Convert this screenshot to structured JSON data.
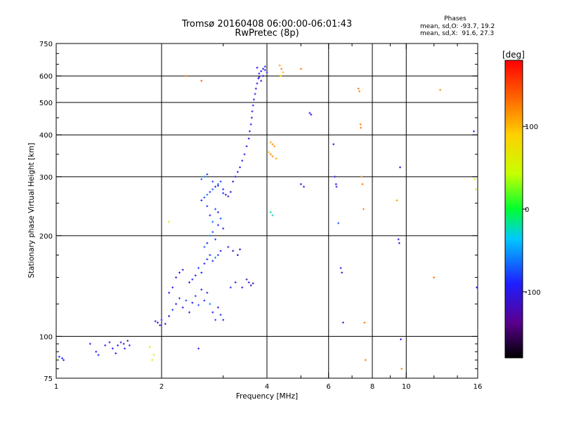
{
  "phase_box": {
    "title": "Phases",
    "line1": "mean, sd,O: -93.7, 19.2",
    "line2": "mean, sd,X:  91.6, 27.3"
  },
  "colorbar": {
    "unit_label": "[deg]",
    "ticks": [
      100,
      0,
      -100
    ],
    "range": [
      -180,
      180
    ]
  },
  "chart_data": {
    "type": "scatter",
    "title": "Tromsø 20160408 06:00:00-06:01:43",
    "subtitle": "RwPretec (8p)",
    "xlabel": "Frequency [MHz]",
    "ylabel": "Stationary phase Virtual Height [km]",
    "xscale": "log",
    "yscale": "log",
    "xlim": [
      1,
      16
    ],
    "ylim": [
      75,
      750
    ],
    "xticks": [
      1,
      2,
      4,
      6,
      8,
      10,
      16
    ],
    "yticks": [
      75,
      100,
      200,
      300,
      400,
      500,
      600,
      750
    ],
    "xgrid": [
      2,
      4,
      6,
      8,
      10
    ],
    "ygrid": [
      100,
      200,
      300,
      400,
      500,
      600
    ],
    "color_encoding": "phase [deg], rainbow scale from -180 (black) to 180 (red)",
    "series": [
      {
        "points": [
          [
            1.02,
            87,
            -95
          ],
          [
            1.04,
            86,
            -90
          ],
          [
            1.05,
            85,
            -98
          ],
          [
            1.25,
            95,
            -100
          ],
          [
            1.3,
            90,
            -95
          ],
          [
            1.32,
            88,
            -90
          ],
          [
            1.38,
            94,
            -95
          ],
          [
            1.42,
            96,
            -100
          ],
          [
            1.45,
            92,
            -92
          ],
          [
            1.5,
            94,
            -98
          ],
          [
            1.53,
            96,
            -95
          ],
          [
            1.56,
            95,
            -100
          ],
          [
            1.6,
            97,
            -95
          ],
          [
            1.62,
            94,
            -92
          ],
          [
            1.57,
            92,
            -105
          ],
          [
            1.48,
            89,
            -98
          ],
          [
            1.92,
            111,
            -100
          ],
          [
            1.95,
            110,
            -95
          ],
          [
            1.98,
            108,
            -98
          ],
          [
            2.0,
            112,
            -90
          ],
          [
            2.05,
            109,
            -100
          ],
          [
            2.1,
            115,
            -95
          ],
          [
            2.15,
            120,
            -80
          ],
          [
            2.2,
            125,
            -100
          ],
          [
            2.25,
            130,
            -85
          ],
          [
            2.3,
            122,
            -95
          ],
          [
            2.35,
            128,
            -75
          ],
          [
            2.4,
            118,
            -100
          ],
          [
            2.45,
            126,
            -90
          ],
          [
            2.5,
            132,
            -80
          ],
          [
            2.55,
            124,
            -70
          ],
          [
            2.6,
            138,
            -95
          ],
          [
            2.65,
            128,
            -85
          ],
          [
            2.7,
            135,
            -100
          ],
          [
            2.75,
            125,
            -60
          ],
          [
            2.8,
            118,
            -90
          ],
          [
            2.85,
            112,
            -75
          ],
          [
            2.9,
            122,
            -100
          ],
          [
            2.95,
            116,
            -85
          ],
          [
            3.0,
            112,
            -95
          ],
          [
            2.1,
            135,
            -95
          ],
          [
            2.15,
            140,
            -90
          ],
          [
            2.2,
            150,
            -100
          ],
          [
            2.25,
            155,
            -95
          ],
          [
            2.3,
            158,
            -90
          ],
          [
            2.4,
            145,
            -100
          ],
          [
            2.45,
            148,
            -92
          ],
          [
            2.5,
            152,
            -98
          ],
          [
            2.55,
            160,
            -85
          ],
          [
            2.6,
            155,
            -90
          ],
          [
            2.65,
            165,
            -95
          ],
          [
            2.7,
            170,
            -80
          ],
          [
            2.75,
            175,
            -85
          ],
          [
            2.8,
            168,
            -90
          ],
          [
            2.85,
            172,
            -60
          ],
          [
            2.9,
            175,
            -75
          ],
          [
            2.95,
            180,
            -95
          ],
          [
            2.65,
            185,
            -70
          ],
          [
            2.7,
            190,
            -90
          ],
          [
            2.75,
            200,
            -60
          ],
          [
            2.8,
            205,
            -75
          ],
          [
            2.85,
            195,
            -80
          ],
          [
            2.9,
            215,
            -85
          ],
          [
            2.95,
            225,
            -70
          ],
          [
            2.75,
            230,
            -90
          ],
          [
            2.8,
            220,
            -65
          ],
          [
            2.85,
            240,
            -75
          ],
          [
            2.7,
            245,
            -85
          ],
          [
            2.9,
            235,
            -95
          ],
          [
            3.0,
            210,
            -90
          ],
          [
            3.1,
            185,
            -100
          ],
          [
            3.2,
            180,
            -95
          ],
          [
            3.3,
            175,
            -120
          ],
          [
            3.35,
            182,
            -110
          ],
          [
            3.5,
            148,
            -115
          ],
          [
            3.55,
            145,
            -110
          ],
          [
            3.6,
            142,
            -105
          ],
          [
            3.65,
            144,
            -120
          ],
          [
            3.4,
            140,
            -100
          ],
          [
            3.25,
            145,
            -95
          ],
          [
            3.15,
            140,
            -85
          ],
          [
            2.6,
            255,
            -90
          ],
          [
            2.65,
            260,
            -75
          ],
          [
            2.7,
            265,
            -60
          ],
          [
            2.75,
            270,
            -85
          ],
          [
            2.8,
            275,
            -70
          ],
          [
            2.85,
            280,
            -95
          ],
          [
            2.9,
            285,
            -65
          ],
          [
            2.95,
            290,
            -80
          ],
          [
            3.0,
            268,
            -90
          ],
          [
            3.05,
            265,
            -110
          ],
          [
            3.1,
            262,
            -120
          ],
          [
            3.15,
            270,
            -105
          ],
          [
            2.6,
            295,
            -70
          ],
          [
            2.65,
            300,
            -60
          ],
          [
            2.7,
            305,
            -85
          ],
          [
            2.8,
            290,
            -75
          ],
          [
            2.9,
            282,
            -100
          ],
          [
            3.0,
            275,
            -95
          ],
          [
            3.2,
            290,
            -110
          ],
          [
            3.25,
            300,
            -100
          ],
          [
            3.3,
            310,
            -95
          ],
          [
            3.35,
            320,
            -90
          ],
          [
            3.4,
            335,
            -100
          ],
          [
            3.45,
            350,
            -95
          ],
          [
            3.5,
            370,
            -100
          ],
          [
            3.55,
            390,
            -95
          ],
          [
            3.57,
            410,
            -100
          ],
          [
            3.6,
            430,
            -92
          ],
          [
            3.62,
            450,
            -98
          ],
          [
            3.63,
            470,
            -100
          ],
          [
            3.65,
            490,
            -95
          ],
          [
            3.67,
            510,
            -100
          ],
          [
            3.7,
            530,
            -95
          ],
          [
            3.72,
            550,
            -100
          ],
          [
            3.75,
            570,
            -92
          ],
          [
            3.78,
            590,
            -98
          ],
          [
            3.8,
            610,
            -100
          ],
          [
            3.85,
            620,
            -95
          ],
          [
            3.9,
            630,
            -100
          ],
          [
            3.95,
            640,
            -92
          ],
          [
            4.0,
            615,
            -98
          ],
          [
            3.9,
            600,
            -100
          ],
          [
            3.8,
            595,
            -95
          ],
          [
            3.85,
            580,
            -100
          ],
          [
            3.95,
            625,
            -95
          ],
          [
            3.75,
            635,
            -100
          ],
          [
            4.35,
            645,
            110
          ],
          [
            4.4,
            630,
            120
          ],
          [
            4.45,
            615,
            100
          ],
          [
            4.38,
            600,
            90
          ],
          [
            4.1,
            380,
            110
          ],
          [
            4.15,
            375,
            120
          ],
          [
            4.2,
            370,
            115
          ],
          [
            4.05,
            355,
            100
          ],
          [
            4.1,
            350,
            125
          ],
          [
            4.15,
            345,
            120
          ],
          [
            4.25,
            340,
            110
          ],
          [
            4.1,
            235,
            -20
          ],
          [
            4.15,
            230,
            -25
          ],
          [
            5.0,
            285,
            -100
          ],
          [
            5.1,
            280,
            -95
          ],
          [
            5.3,
            465,
            -100
          ],
          [
            5.35,
            460,
            -98
          ],
          [
            6.2,
            375,
            -100
          ],
          [
            6.25,
            300,
            -95
          ],
          [
            6.3,
            285,
            -90
          ],
          [
            6.32,
            280,
            -100
          ],
          [
            6.4,
            218,
            -70
          ],
          [
            6.5,
            160,
            -95
          ],
          [
            6.55,
            155,
            -100
          ],
          [
            6.6,
            110,
            -95
          ],
          [
            7.3,
            550,
            130
          ],
          [
            7.35,
            540,
            125
          ],
          [
            7.4,
            430,
            130
          ],
          [
            7.42,
            420,
            125
          ],
          [
            7.45,
            300,
            120
          ],
          [
            7.5,
            285,
            130
          ],
          [
            7.55,
            240,
            120
          ],
          [
            7.6,
            110,
            130
          ],
          [
            7.65,
            85,
            125
          ],
          [
            9.4,
            255,
            110
          ],
          [
            9.5,
            195,
            -100
          ],
          [
            9.55,
            190,
            -95
          ],
          [
            9.6,
            320,
            -100
          ],
          [
            9.65,
            98,
            -95
          ],
          [
            9.7,
            80,
            120
          ],
          [
            12.5,
            545,
            120
          ],
          [
            12.0,
            150,
            130
          ],
          [
            15.6,
            410,
            -90
          ],
          [
            15.7,
            295,
            80
          ],
          [
            15.8,
            275,
            70
          ],
          [
            15.9,
            140,
            -100
          ],
          [
            5.0,
            630,
            130
          ],
          [
            2.6,
            580,
            140
          ],
          [
            2.35,
            600,
            130
          ],
          [
            1.85,
            93,
            60
          ],
          [
            1.88,
            85,
            50
          ],
          [
            1.9,
            88,
            55
          ],
          [
            2.1,
            220,
            50
          ],
          [
            2.55,
            92,
            -95
          ]
        ]
      }
    ]
  }
}
